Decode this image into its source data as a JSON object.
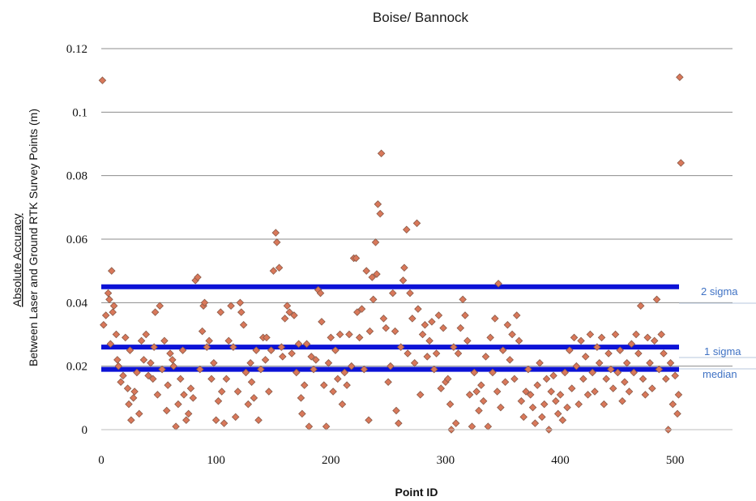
{
  "chart_data": {
    "type": "scatter",
    "title": "Boise/ Bannock",
    "xlabel": "Point ID",
    "ylabel_line1": "Absolute Accuracy",
    "ylabel_line2": "Between Laser and Ground RTK Survey Points (m)",
    "xlim": [
      0,
      550
    ],
    "ylim": [
      0,
      0.12
    ],
    "x_ticks": [
      0,
      100,
      200,
      300,
      400,
      500
    ],
    "y_ticks": [
      0,
      0.02,
      0.04,
      0.06,
      0.08,
      0.1,
      0.12
    ],
    "x_tick_labels": [
      "0",
      "100",
      "200",
      "300",
      "400",
      "500"
    ],
    "y_tick_labels": [
      "0",
      "0.02",
      "0.04",
      "0.06",
      "0.08",
      "0.1",
      "0.12"
    ],
    "grid": "horizontal",
    "marker": "diamond",
    "colors": {
      "marker_fill": "#d9785a",
      "marker_edge": "#8a5a48",
      "ref_line": "#0c12d6",
      "ref_label": "#3f72c4",
      "guide": "#b7c7dc",
      "grid": "#8c8c8c"
    },
    "reference_lines": [
      {
        "label": "2 sigma",
        "value": 0.045
      },
      {
        "label": "1 sigma",
        "value": 0.026
      },
      {
        "label": "median",
        "value": 0.019
      }
    ],
    "points": [
      [
        1,
        0.11
      ],
      [
        2,
        0.033
      ],
      [
        4,
        0.036
      ],
      [
        6,
        0.043
      ],
      [
        7,
        0.041
      ],
      [
        8,
        0.027
      ],
      [
        9,
        0.05
      ],
      [
        10,
        0.037
      ],
      [
        11,
        0.039
      ],
      [
        13,
        0.03
      ],
      [
        14,
        0.022
      ],
      [
        15,
        0.02
      ],
      [
        17,
        0.015
      ],
      [
        19,
        0.017
      ],
      [
        21,
        0.029
      ],
      [
        23,
        0.013
      ],
      [
        24,
        0.008
      ],
      [
        25,
        0.025
      ],
      [
        26,
        0.003
      ],
      [
        28,
        0.01
      ],
      [
        29,
        0.012
      ],
      [
        31,
        0.018
      ],
      [
        33,
        0.005
      ],
      [
        35,
        0.028
      ],
      [
        37,
        0.022
      ],
      [
        39,
        0.03
      ],
      [
        41,
        0.017
      ],
      [
        43,
        0.021
      ],
      [
        45,
        0.016
      ],
      [
        46,
        0.026
      ],
      [
        47,
        0.037
      ],
      [
        49,
        0.011
      ],
      [
        51,
        0.039
      ],
      [
        53,
        0.019
      ],
      [
        55,
        0.028
      ],
      [
        57,
        0.006
      ],
      [
        58,
        0.014
      ],
      [
        60,
        0.024
      ],
      [
        62,
        0.022
      ],
      [
        63,
        0.02
      ],
      [
        65,
        0.001
      ],
      [
        67,
        0.008
      ],
      [
        69,
        0.016
      ],
      [
        71,
        0.025
      ],
      [
        72,
        0.011
      ],
      [
        74,
        0.003
      ],
      [
        76,
        0.005
      ],
      [
        78,
        0.013
      ],
      [
        80,
        0.01
      ],
      [
        82,
        0.047
      ],
      [
        84,
        0.048
      ],
      [
        86,
        0.019
      ],
      [
        88,
        0.031
      ],
      [
        89,
        0.039
      ],
      [
        90,
        0.04
      ],
      [
        92,
        0.026
      ],
      [
        94,
        0.028
      ],
      [
        96,
        0.016
      ],
      [
        98,
        0.021
      ],
      [
        100,
        0.003
      ],
      [
        102,
        0.009
      ],
      [
        104,
        0.037
      ],
      [
        105,
        0.012
      ],
      [
        107,
        0.002
      ],
      [
        109,
        0.016
      ],
      [
        111,
        0.028
      ],
      [
        113,
        0.039
      ],
      [
        115,
        0.026
      ],
      [
        117,
        0.004
      ],
      [
        119,
        0.012
      ],
      [
        121,
        0.04
      ],
      [
        122,
        0.037
      ],
      [
        124,
        0.033
      ],
      [
        126,
        0.018
      ],
      [
        128,
        0.008
      ],
      [
        130,
        0.021
      ],
      [
        131,
        0.015
      ],
      [
        133,
        0.01
      ],
      [
        135,
        0.025
      ],
      [
        137,
        0.003
      ],
      [
        139,
        0.019
      ],
      [
        141,
        0.029
      ],
      [
        143,
        0.022
      ],
      [
        144,
        0.029
      ],
      [
        146,
        0.012
      ],
      [
        148,
        0.025
      ],
      [
        150,
        0.05
      ],
      [
        152,
        0.062
      ],
      [
        153,
        0.059
      ],
      [
        155,
        0.051
      ],
      [
        157,
        0.026
      ],
      [
        158,
        0.023
      ],
      [
        160,
        0.035
      ],
      [
        162,
        0.039
      ],
      [
        164,
        0.037
      ],
      [
        166,
        0.024
      ],
      [
        168,
        0.036
      ],
      [
        170,
        0.018
      ],
      [
        172,
        0.027
      ],
      [
        174,
        0.01
      ],
      [
        175,
        0.005
      ],
      [
        177,
        0.014
      ],
      [
        179,
        0.027
      ],
      [
        181,
        0.001
      ],
      [
        183,
        0.023
      ],
      [
        185,
        0.019
      ],
      [
        187,
        0.022
      ],
      [
        189,
        0.044
      ],
      [
        191,
        0.043
      ],
      [
        192,
        0.034
      ],
      [
        194,
        0.014
      ],
      [
        196,
        0.001
      ],
      [
        198,
        0.021
      ],
      [
        200,
        0.029
      ],
      [
        202,
        0.012
      ],
      [
        204,
        0.025
      ],
      [
        206,
        0.016
      ],
      [
        208,
        0.03
      ],
      [
        210,
        0.008
      ],
      [
        212,
        0.018
      ],
      [
        214,
        0.014
      ],
      [
        216,
        0.03
      ],
      [
        218,
        0.02
      ],
      [
        220,
        0.054
      ],
      [
        222,
        0.054
      ],
      [
        223,
        0.037
      ],
      [
        225,
        0.029
      ],
      [
        227,
        0.038
      ],
      [
        229,
        0.019
      ],
      [
        231,
        0.05
      ],
      [
        233,
        0.003
      ],
      [
        234,
        0.031
      ],
      [
        236,
        0.048
      ],
      [
        237,
        0.041
      ],
      [
        239,
        0.059
      ],
      [
        240,
        0.049
      ],
      [
        241,
        0.071
      ],
      [
        243,
        0.068
      ],
      [
        244,
        0.087
      ],
      [
        246,
        0.035
      ],
      [
        248,
        0.032
      ],
      [
        250,
        0.015
      ],
      [
        252,
        0.02
      ],
      [
        254,
        0.043
      ],
      [
        256,
        0.031
      ],
      [
        257,
        0.006
      ],
      [
        259,
        0.002
      ],
      [
        261,
        0.026
      ],
      [
        263,
        0.047
      ],
      [
        264,
        0.051
      ],
      [
        266,
        0.063
      ],
      [
        267,
        0.024
      ],
      [
        269,
        0.043
      ],
      [
        271,
        0.035
      ],
      [
        273,
        0.021
      ],
      [
        275,
        0.065
      ],
      [
        276,
        0.038
      ],
      [
        278,
        0.011
      ],
      [
        280,
        0.03
      ],
      [
        282,
        0.033
      ],
      [
        284,
        0.023
      ],
      [
        286,
        0.028
      ],
      [
        288,
        0.034
      ],
      [
        290,
        0.019
      ],
      [
        292,
        0.024
      ],
      [
        294,
        0.036
      ],
      [
        296,
        0.013
      ],
      [
        298,
        0.032
      ],
      [
        300,
        0.015
      ],
      [
        302,
        0.016
      ],
      [
        304,
        0.008
      ],
      [
        305,
        0.0
      ],
      [
        307,
        0.026
      ],
      [
        309,
        0.002
      ],
      [
        311,
        0.024
      ],
      [
        313,
        0.032
      ],
      [
        315,
        0.041
      ],
      [
        317,
        0.036
      ],
      [
        319,
        0.028
      ],
      [
        321,
        0.011
      ],
      [
        323,
        0.001
      ],
      [
        325,
        0.018
      ],
      [
        327,
        0.012
      ],
      [
        329,
        0.006
      ],
      [
        331,
        0.014
      ],
      [
        333,
        0.009
      ],
      [
        335,
        0.023
      ],
      [
        337,
        0.001
      ],
      [
        339,
        0.029
      ],
      [
        341,
        0.018
      ],
      [
        343,
        0.035
      ],
      [
        345,
        0.012
      ],
      [
        346,
        0.046
      ],
      [
        348,
        0.007
      ],
      [
        350,
        0.025
      ],
      [
        352,
        0.015
      ],
      [
        354,
        0.033
      ],
      [
        356,
        0.022
      ],
      [
        358,
        0.03
      ],
      [
        360,
        0.016
      ],
      [
        362,
        0.036
      ],
      [
        364,
        0.028
      ],
      [
        366,
        0.009
      ],
      [
        368,
        0.004
      ],
      [
        370,
        0.012
      ],
      [
        372,
        0.019
      ],
      [
        374,
        0.011
      ],
      [
        376,
        0.007
      ],
      [
        378,
        0.002
      ],
      [
        380,
        0.014
      ],
      [
        382,
        0.021
      ],
      [
        384,
        0.004
      ],
      [
        386,
        0.008
      ],
      [
        388,
        0.016
      ],
      [
        390,
        0.0
      ],
      [
        392,
        0.012
      ],
      [
        394,
        0.017
      ],
      [
        396,
        0.009
      ],
      [
        398,
        0.005
      ],
      [
        400,
        0.011
      ],
      [
        402,
        0.003
      ],
      [
        404,
        0.018
      ],
      [
        406,
        0.007
      ],
      [
        408,
        0.025
      ],
      [
        410,
        0.013
      ],
      [
        412,
        0.029
      ],
      [
        414,
        0.02
      ],
      [
        416,
        0.008
      ],
      [
        418,
        0.028
      ],
      [
        420,
        0.016
      ],
      [
        422,
        0.023
      ],
      [
        424,
        0.011
      ],
      [
        426,
        0.03
      ],
      [
        428,
        0.018
      ],
      [
        430,
        0.012
      ],
      [
        432,
        0.026
      ],
      [
        434,
        0.021
      ],
      [
        436,
        0.029
      ],
      [
        438,
        0.008
      ],
      [
        440,
        0.016
      ],
      [
        442,
        0.024
      ],
      [
        444,
        0.019
      ],
      [
        446,
        0.013
      ],
      [
        448,
        0.03
      ],
      [
        450,
        0.018
      ],
      [
        452,
        0.025
      ],
      [
        454,
        0.009
      ],
      [
        456,
        0.015
      ],
      [
        458,
        0.021
      ],
      [
        460,
        0.012
      ],
      [
        462,
        0.027
      ],
      [
        464,
        0.018
      ],
      [
        466,
        0.03
      ],
      [
        468,
        0.024
      ],
      [
        470,
        0.039
      ],
      [
        472,
        0.016
      ],
      [
        474,
        0.011
      ],
      [
        476,
        0.029
      ],
      [
        478,
        0.021
      ],
      [
        480,
        0.013
      ],
      [
        482,
        0.028
      ],
      [
        484,
        0.041
      ],
      [
        486,
        0.019
      ],
      [
        488,
        0.03
      ],
      [
        490,
        0.024
      ],
      [
        492,
        0.016
      ],
      [
        494,
        0.0
      ],
      [
        496,
        0.021
      ],
      [
        498,
        0.008
      ],
      [
        500,
        0.017
      ],
      [
        502,
        0.005
      ],
      [
        503,
        0.011
      ],
      [
        504,
        0.111
      ],
      [
        505,
        0.084
      ]
    ]
  }
}
